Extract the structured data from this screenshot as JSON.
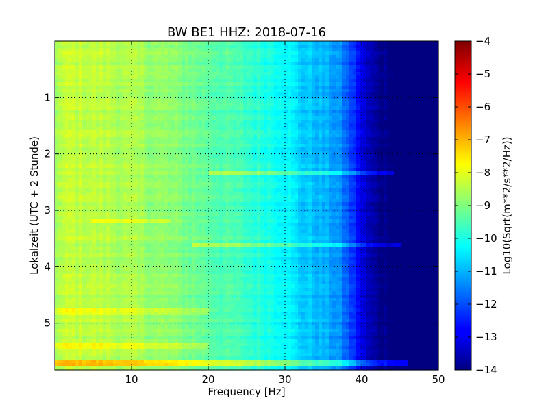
{
  "chart_data": {
    "type": "heatmap",
    "title": "BW BE1 HHZ: 2018-07-16",
    "xlabel": "Frequency [Hz]",
    "ylabel": "Lokalzeit (UTC + 2 Stunde)",
    "colorbar_label": "Log10(Sqrt(m**2/s**2/Hz))",
    "xlim": [
      0,
      50
    ],
    "ylim": [
      0,
      5.83
    ],
    "y_inverted": true,
    "x_ticks": [
      10,
      20,
      30,
      40,
      50
    ],
    "y_ticks": [
      1,
      2,
      3,
      4,
      5
    ],
    "colorbar_range": [
      -14,
      -4
    ],
    "colorbar_ticks": [
      -4,
      -5,
      -6,
      -7,
      -8,
      -9,
      -10,
      -11,
      -12,
      -13,
      -14
    ],
    "colormap": "jet",
    "grid": true,
    "frequency_profile": {
      "freq_hz": [
        0,
        2,
        5,
        10,
        15,
        20,
        25,
        30,
        32,
        35,
        37,
        38,
        39,
        40,
        41,
        42,
        43,
        44,
        45,
        50
      ],
      "level": [
        -8.6,
        -8.3,
        -8.4,
        -8.6,
        -8.9,
        -9.3,
        -9.7,
        -10.2,
        -10.7,
        -11.0,
        -11.3,
        -11.8,
        -12.3,
        -13.0,
        -13.5,
        -13.8,
        -13.9,
        -14.0,
        -14.0,
        -14.0
      ]
    },
    "horizontal_bands": [
      {
        "time_h": 2.35,
        "freq_range": [
          20,
          44
        ],
        "level_offset": 0.9
      },
      {
        "time_h": 3.6,
        "freq_range": [
          18,
          45
        ],
        "level_offset": 1.0
      },
      {
        "time_h": 5.7,
        "freq_range": [
          0,
          46
        ],
        "level_offset": 1.2
      },
      {
        "time_h": 5.4,
        "freq_range": [
          0,
          20
        ],
        "level_offset": 0.6
      },
      {
        "time_h": 4.8,
        "freq_range": [
          0,
          20
        ],
        "level_offset": 0.5
      },
      {
        "time_h": 3.2,
        "freq_range": [
          5,
          15
        ],
        "level_offset": 0.5
      }
    ]
  }
}
